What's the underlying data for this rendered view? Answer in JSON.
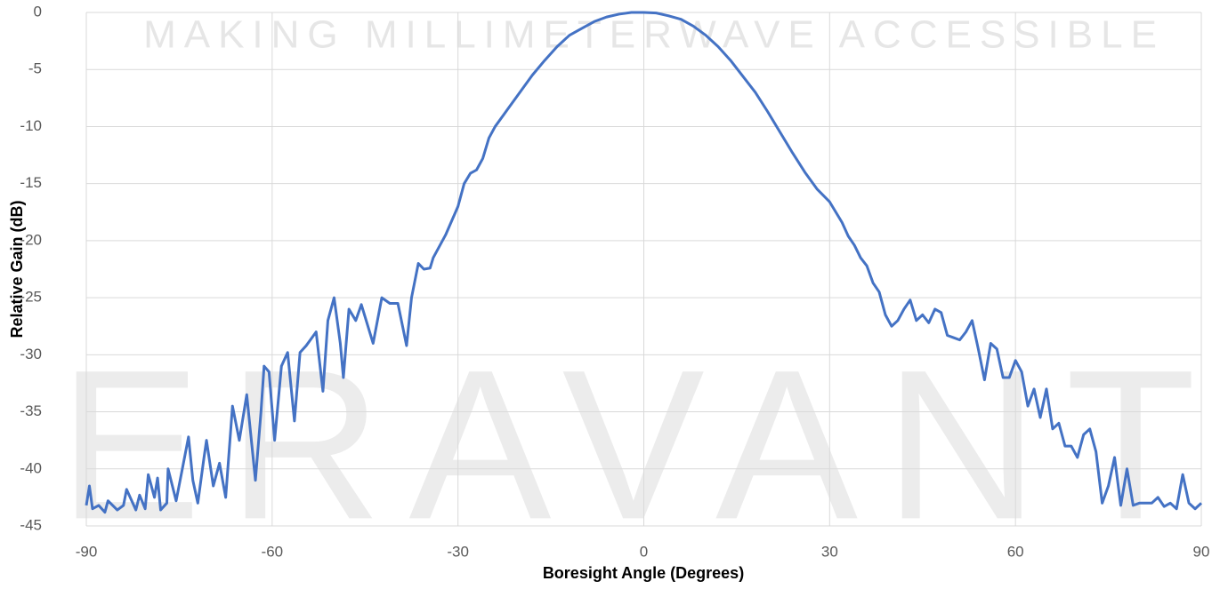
{
  "chart_data": {
    "type": "line",
    "watermarks": [
      "MAKING MILLIMETERWAVE ACCESSIBLE",
      "ERAVANT"
    ],
    "x_label": "Boresight Angle (Degrees)",
    "y_label": "Relative Gain (dB)",
    "xlim": [
      -90,
      90
    ],
    "xticks": [
      -90,
      -60,
      -30,
      0,
      30,
      60,
      90
    ],
    "ylim": [
      -45,
      0
    ],
    "yticks": [
      -45,
      -40,
      -35,
      -30,
      -25,
      -20,
      -15,
      -10,
      -5,
      0
    ],
    "grid": true,
    "series": [
      {
        "name": "Relative Gain",
        "color": "#4472c4",
        "x": [
          -90,
          -89.5,
          -89,
          -88,
          -87,
          -86.5,
          -85,
          -84,
          -83.5,
          -82,
          -81.4,
          -80.5,
          -80,
          -79,
          -78.5,
          -78,
          -77,
          -76.8,
          -75.5,
          -74.5,
          -73.5,
          -72.8,
          -72,
          -71,
          -70.6,
          -69.5,
          -68.5,
          -67.5,
          -66.4,
          -65.3,
          -64.1,
          -62.7,
          -61.8,
          -61.3,
          -60.5,
          -59.6,
          -58.5,
          -57.5,
          -56.4,
          -55.5,
          -54.5,
          -52.9,
          -51.8,
          -51,
          -50,
          -49,
          -48.5,
          -47.6,
          -46.5,
          -45.6,
          -43.7,
          -42.3,
          -41,
          -39.7,
          -38.3,
          -37.5,
          -36.4,
          -35.5,
          -34.5,
          -34,
          -32,
          -30,
          -29,
          -28,
          -27,
          -26,
          -25,
          -24,
          -22,
          -20,
          -18,
          -16,
          -14,
          -12,
          -10,
          -8,
          -6,
          -4,
          -2,
          0,
          2,
          4,
          6,
          8,
          10,
          12,
          14,
          16,
          18,
          20,
          22,
          24,
          26,
          28,
          30,
          32,
          33,
          34,
          35,
          36,
          37,
          38,
          39,
          40,
          41,
          42,
          43,
          44,
          45,
          46,
          47,
          48,
          49,
          50,
          51,
          52,
          53,
          54,
          55,
          56,
          57,
          58,
          59,
          60,
          61,
          62,
          63,
          64,
          65,
          66,
          67,
          68,
          69,
          70,
          71,
          72,
          73,
          74,
          75,
          76,
          77,
          78,
          79,
          80,
          82,
          83,
          84,
          85,
          86,
          87,
          88,
          89,
          90
        ],
        "values": [
          -43.2,
          -41.5,
          -43.5,
          -43.2,
          -43.8,
          -42.8,
          -43.6,
          -43.2,
          -41.8,
          -43.6,
          -42.3,
          -43.5,
          -40.5,
          -42.5,
          -40.8,
          -43.6,
          -43,
          -40,
          -42.8,
          -40,
          -37.2,
          -41,
          -43,
          -39,
          -37.5,
          -41.5,
          -39.5,
          -42.5,
          -34.5,
          -37.5,
          -33.5,
          -41,
          -35,
          -31,
          -31.5,
          -37.5,
          -31,
          -29.8,
          -35.8,
          -29.8,
          -29.2,
          -28,
          -33.2,
          -27,
          -25,
          -29,
          -32,
          -26,
          -27,
          -25.6,
          -29,
          -25,
          -25.5,
          -25.5,
          -29.2,
          -25,
          -22,
          -22.5,
          -22.4,
          -21.5,
          -19.5,
          -17,
          -15,
          -14.1,
          -13.8,
          -12.8,
          -11,
          -10,
          -8.5,
          -7,
          -5.5,
          -4.2,
          -3,
          -2,
          -1.4,
          -0.8,
          -0.4,
          -0.15,
          0,
          0,
          -0.05,
          -0.3,
          -0.6,
          -1.2,
          -2,
          -3,
          -4.2,
          -5.6,
          -7,
          -8.7,
          -10.5,
          -12.3,
          -14,
          -15.5,
          -16.6,
          -18.4,
          -19.6,
          -20.4,
          -21.5,
          -22.2,
          -23.7,
          -24.5,
          -26.5,
          -27.5,
          -27,
          -26,
          -25.2,
          -27,
          -26.5,
          -27.2,
          -26,
          -26.3,
          -28.3,
          -28.5,
          -28.7,
          -28,
          -27,
          -29.5,
          -32.2,
          -29,
          -29.5,
          -32,
          -32,
          -30.5,
          -31.5,
          -34.5,
          -33,
          -35.5,
          -33,
          -36.5,
          -36,
          -38,
          -38,
          -39,
          -37,
          -36.5,
          -38.5,
          -43,
          -41.5,
          -39,
          -43.2,
          -40,
          -43.2,
          -43,
          -43,
          -42.5,
          -43.3,
          -43,
          -43.5,
          -40.5,
          -43,
          -43.5,
          -43
        ]
      }
    ]
  }
}
